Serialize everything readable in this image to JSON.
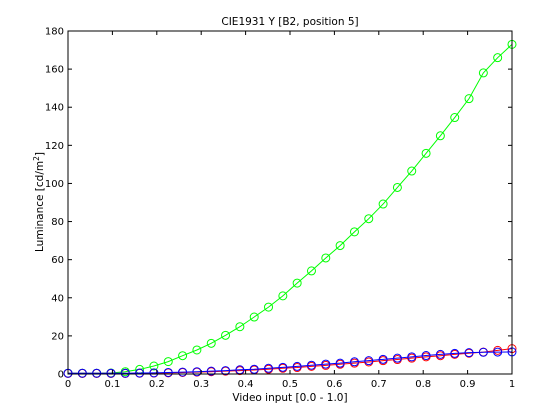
{
  "chart_data": {
    "type": "line",
    "title": "CIE1931 Y [B2, position 5]",
    "xlabel": "Video input [0.0 - 1.0]",
    "ylabel_main": "Luminance [cd/m",
    "ylabel_sup": "2",
    "ylabel_end": "]",
    "xlim": [
      0,
      1
    ],
    "ylim": [
      0,
      180
    ],
    "xticks": [
      0,
      0.1,
      0.2,
      0.3,
      0.4,
      0.5,
      0.6,
      0.7,
      0.8,
      0.9,
      1
    ],
    "xtick_labels": [
      "0",
      "0.1",
      "0.2",
      "0.3",
      "0.4",
      "0.5",
      "0.6",
      "0.7",
      "0.8",
      "0.9",
      "1"
    ],
    "yticks": [
      0,
      20,
      40,
      60,
      80,
      100,
      120,
      140,
      160,
      180
    ],
    "ytick_labels": [
      "0",
      "20",
      "40",
      "60",
      "80",
      "100",
      "120",
      "140",
      "160",
      "180"
    ],
    "grid": false,
    "legend": "none",
    "marker": "circle",
    "x": [
      0,
      0.0323,
      0.0645,
      0.0968,
      0.129,
      0.1613,
      0.1935,
      0.2258,
      0.2581,
      0.2903,
      0.3226,
      0.3548,
      0.3871,
      0.4194,
      0.4516,
      0.4839,
      0.5161,
      0.5484,
      0.5806,
      0.6129,
      0.6452,
      0.6774,
      0.7097,
      0.7419,
      0.7742,
      0.8065,
      0.8387,
      0.871,
      0.9032,
      0.9355,
      0.9677,
      1
    ],
    "series": [
      {
        "color": "#ff0000",
        "values": [
          0.3,
          0.3,
          0.3,
          0.3,
          0.3,
          0.4,
          0.5,
          0.6,
          0.8,
          1.0,
          1.2,
          1.5,
          1.8,
          2.1,
          2.5,
          3.0,
          3.4,
          4.0,
          4.5,
          5.1,
          5.7,
          6.3,
          7.0,
          7.6,
          8.3,
          9.0,
          9.6,
          10.3,
          10.9,
          11.5,
          12.4,
          13.3
        ]
      },
      {
        "color": "#00ff00",
        "values": [
          0.4,
          0.4,
          0.4,
          0.5,
          1.2,
          2.4,
          4.2,
          6.5,
          9.6,
          12.6,
          16.1,
          20.3,
          24.8,
          29.9,
          35.1,
          41.0,
          47.7,
          54.1,
          60.9,
          67.4,
          74.6,
          81.5,
          89.2,
          97.9,
          106.5,
          115.8,
          125.0,
          134.6,
          144.5,
          158.0,
          166.0,
          173.0
        ]
      },
      {
        "color": "#0000ff",
        "values": [
          0.4,
          0.4,
          0.4,
          0.4,
          0.4,
          0.5,
          0.6,
          0.8,
          1.0,
          1.2,
          1.5,
          1.8,
          2.2,
          2.5,
          3.0,
          3.5,
          4.0,
          4.6,
          5.2,
          5.7,
          6.4,
          7.0,
          7.7,
          8.3,
          9.0,
          9.7,
          10.3,
          10.8,
          11.2,
          11.4,
          11.5,
          11.6
        ]
      }
    ]
  }
}
